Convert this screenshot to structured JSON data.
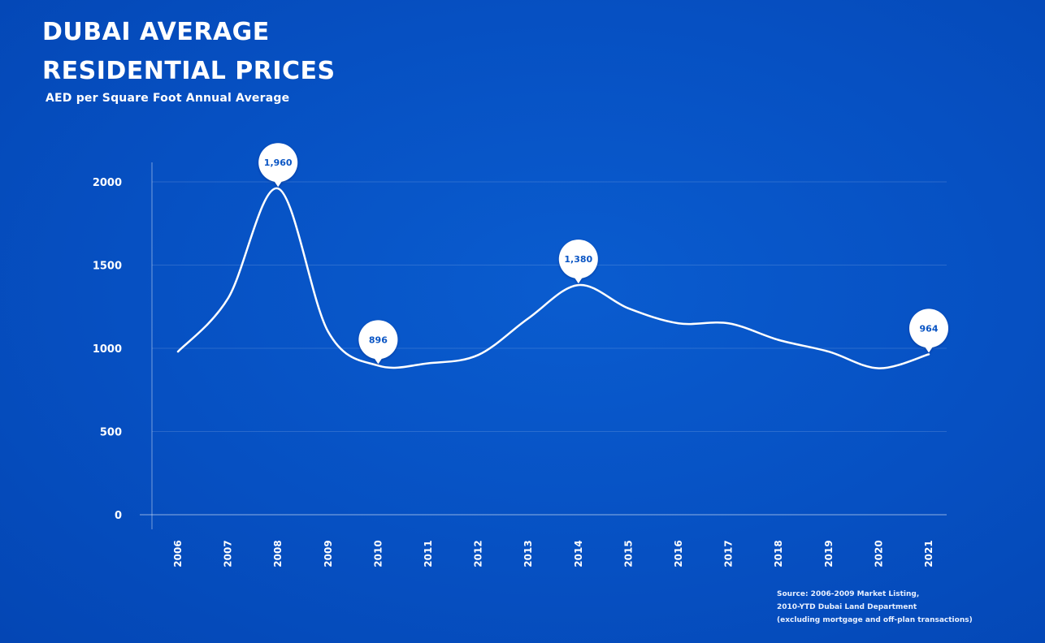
{
  "title_line1": "DUBAI AVERAGE",
  "title_line2": "RESIDENTIAL PRICES",
  "subtitle": "AED per Square Foot Annual Average",
  "source_lines": [
    "Source: 2006-2009 Market Listing,",
    "2010-YTD Dubai Land Department",
    "(excluding mortgage and off-plan transactions)"
  ],
  "chart_data": {
    "type": "line",
    "title": "DUBAI AVERAGE RESIDENTIAL PRICES",
    "subtitle": "AED per Square Foot Annual Average",
    "x": [
      "2006",
      "2007",
      "2008",
      "2009",
      "2010",
      "2011",
      "2012",
      "2013",
      "2014",
      "2015",
      "2016",
      "2017",
      "2018",
      "2019",
      "2020",
      "2021"
    ],
    "series": [
      {
        "values": [
          980,
          1300,
          1960,
          1100,
          896,
          910,
          960,
          1180,
          1380,
          1240,
          1150,
          1150,
          1050,
          980,
          880,
          964
        ]
      }
    ],
    "annotations": [
      {
        "x": "2008",
        "label": "1,960"
      },
      {
        "x": "2010",
        "label": "896"
      },
      {
        "x": "2014",
        "label": "1,380"
      },
      {
        "x": "2021",
        "label": "964"
      }
    ],
    "yticks": [
      0,
      500,
      1000,
      1500,
      2000
    ],
    "ylim": [
      0,
      2000
    ],
    "grid": true,
    "colors": {
      "line": "#ffffff",
      "callout_text": "#0a55c4"
    }
  }
}
